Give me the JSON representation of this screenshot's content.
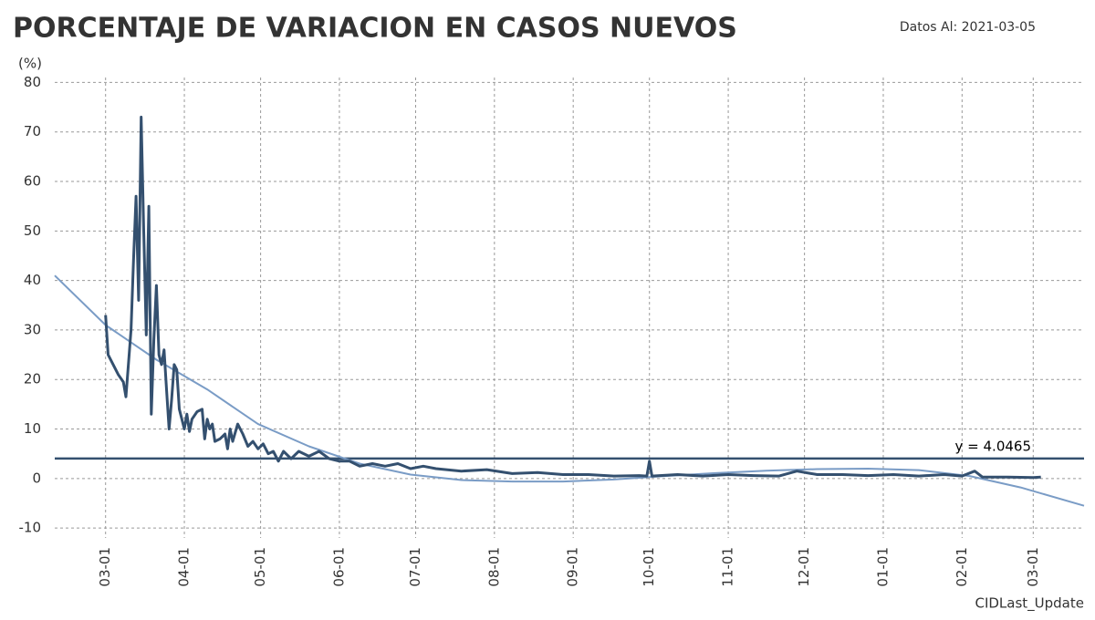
{
  "chart_data": {
    "type": "line",
    "title": "PORCENTAJE DE VARIACION EN CASOS NUEVOS",
    "subtitle": "Datos Al: 2021-03-05",
    "y_label": "(%)",
    "footer": "CIDLast_Update",
    "xlim": [
      -20,
      385
    ],
    "ylim": [
      -12,
      81
    ],
    "xticks": [
      {
        "value": 0,
        "label": "03-01"
      },
      {
        "value": 31,
        "label": "04-01"
      },
      {
        "value": 61,
        "label": "05-01"
      },
      {
        "value": 92,
        "label": "06-01"
      },
      {
        "value": 122,
        "label": "07-01"
      },
      {
        "value": 153,
        "label": "08-01"
      },
      {
        "value": 184,
        "label": "09-01"
      },
      {
        "value": 214,
        "label": "10-01"
      },
      {
        "value": 245,
        "label": "11-01"
      },
      {
        "value": 275,
        "label": "12-01"
      },
      {
        "value": 306,
        "label": "01-01"
      },
      {
        "value": 337,
        "label": "02-01"
      },
      {
        "value": 365,
        "label": "03-01"
      }
    ],
    "yticks": [
      -10,
      0,
      10,
      20,
      30,
      40,
      50,
      60,
      70,
      80
    ],
    "grid": true,
    "series": [
      {
        "color": "#34506f",
        "width": 3,
        "x": [
          0,
          1,
          5,
          7,
          8,
          10,
          11,
          12,
          13,
          14,
          15,
          16,
          17,
          18,
          19,
          20,
          21,
          22,
          23,
          24,
          25,
          26,
          27,
          28,
          29,
          30,
          31,
          32,
          33,
          34,
          36,
          38,
          39,
          40,
          41,
          42,
          43,
          45,
          47,
          48,
          49,
          50,
          52,
          54,
          56,
          58,
          60,
          62,
          64,
          66,
          68,
          70,
          73,
          76,
          80,
          84,
          88,
          92,
          96,
          100,
          105,
          110,
          115,
          120,
          125,
          130,
          140,
          150,
          160,
          170,
          180,
          190,
          200,
          210,
          213,
          214,
          215,
          225,
          235,
          245,
          255,
          265,
          272,
          280,
          290,
          300,
          310,
          320,
          330,
          337,
          342,
          345,
          355,
          365,
          368
        ],
        "values": [
          33,
          25,
          21,
          19.5,
          16.5,
          30,
          44,
          57,
          36,
          73,
          50,
          29,
          55,
          13,
          28,
          39,
          25,
          23,
          26,
          18,
          10,
          16,
          23,
          22,
          14,
          12,
          10,
          13,
          9.5,
          12,
          13.5,
          14,
          8,
          12,
          10,
          11,
          7.5,
          8,
          9,
          6,
          10,
          7.5,
          11,
          9,
          6.5,
          7.5,
          6,
          7,
          5,
          5.5,
          3.5,
          5.5,
          4,
          5.5,
          4.5,
          5.5,
          4,
          3.5,
          3.5,
          2.5,
          3,
          2.5,
          3,
          2,
          2.5,
          2,
          1.5,
          1.8,
          1,
          1.2,
          0.8,
          0.8,
          0.5,
          0.6,
          0.5,
          3.5,
          0.5,
          0.8,
          0.5,
          0.8,
          0.6,
          0.5,
          1.5,
          0.8,
          0.8,
          0.6,
          0.8,
          0.5,
          0.8,
          0.5,
          1.5,
          0.3,
          0.3,
          0.2,
          0.3
        ]
      },
      {
        "color": "#7a9cc6",
        "width": 2,
        "x": [
          -20,
          0,
          20,
          40,
          60,
          80,
          100,
          120,
          140,
          160,
          180,
          200,
          220,
          240,
          260,
          280,
          300,
          320,
          340,
          360,
          385
        ],
        "values": [
          41,
          31,
          24,
          18,
          11,
          6.5,
          3,
          0.8,
          -0.3,
          -0.6,
          -0.6,
          -0.2,
          0.5,
          1.1,
          1.6,
          1.9,
          2,
          1.7,
          0.5,
          -1.8,
          -5.5
        ]
      }
    ],
    "hline": {
      "value": 4.0465,
      "label": "y = 4.0465",
      "color": "#34506f"
    }
  }
}
